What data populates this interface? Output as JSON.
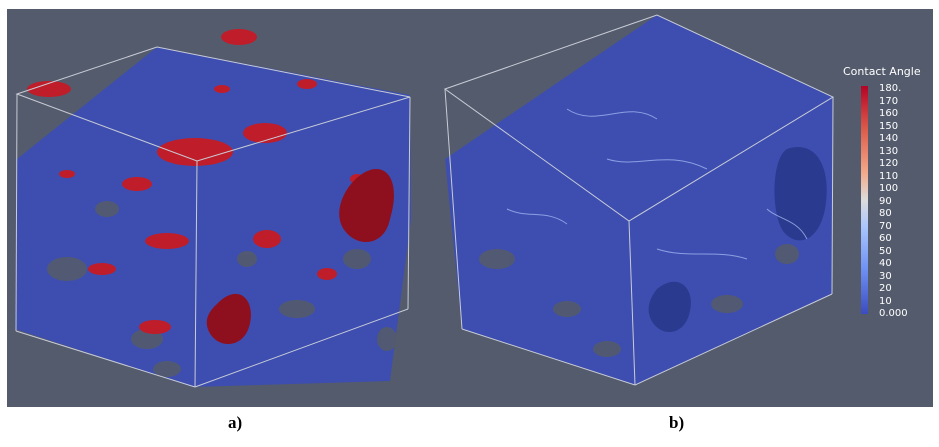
{
  "panels": [
    {
      "label": "a)"
    },
    {
      "label": "b)"
    }
  ],
  "legend": {
    "title": "Contact Angle",
    "ticks": [
      "180.",
      "170",
      "160",
      "150",
      "140",
      "130",
      "120",
      "110",
      "100",
      "90",
      "80",
      "70",
      "60",
      "50",
      "40",
      "30",
      "20",
      "10",
      "0.000"
    ],
    "colormap": [
      "#b40426",
      "#dd604d",
      "#f4a98a",
      "#dddcdc",
      "#a9c6fd",
      "#7092f3",
      "#3b4cc0"
    ]
  },
  "colors": {
    "background": "#545b6c",
    "pore_blue": "#3d4eb0",
    "pore_red": "#c01d2a",
    "pore_dark_red": "#8e0f1e",
    "outline": "#c8ccd6"
  }
}
